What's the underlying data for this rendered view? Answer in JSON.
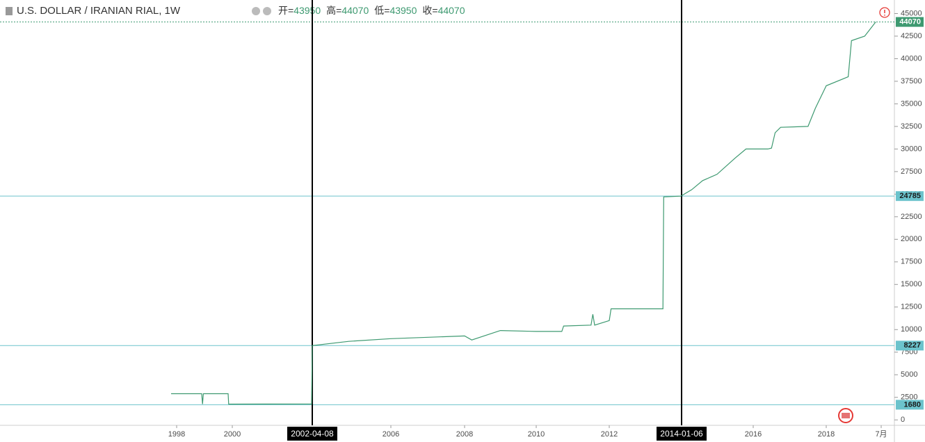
{
  "chart_data": {
    "type": "line",
    "title": "U.S. DOLLAR / IRANIAN RIAL, 1W",
    "ohlc": [
      {
        "label": "开=",
        "value": 43950
      },
      {
        "label": "高=",
        "value": 44070
      },
      {
        "label": "低=",
        "value": 43950
      },
      {
        "label": "收=",
        "value": 44070
      }
    ],
    "series": [
      {
        "color": "#3d9970",
        "x": [
          1997.8,
          1998.9,
          1998.93,
          1998.96,
          1999.85,
          1999.87,
          2002.25,
          2002.27,
          2004,
          2006,
          2008,
          2008.2,
          2009,
          2010,
          2010.7,
          2010.75,
          2011.5,
          2011.55,
          2011.6,
          2012.0,
          2012.05,
          2013.5,
          2013.52,
          2014.0,
          2014.3,
          2014.6,
          2015.0,
          2015.5,
          2015.8,
          2016.4,
          2016.5,
          2016.6,
          2016.75,
          2017.5,
          2017.7,
          2018.0,
          2018.2,
          2018.23,
          2018.35,
          2018.45
        ],
        "values": [
          2900,
          2900,
          1750,
          2900,
          2900,
          1750,
          1760,
          8227,
          8700,
          9000,
          9300,
          8850,
          9900,
          9800,
          9800,
          10400,
          10500,
          11700,
          10500,
          11000,
          12300,
          12300,
          24700,
          24785,
          25500,
          26500,
          27200,
          29000,
          30000,
          30000,
          30100,
          31800,
          32400,
          32500,
          34500,
          37000,
          38000,
          42000,
          42500,
          44070
        ]
      }
    ],
    "xlim": [
      1991.65,
      2018.86
    ],
    "xticks": [
      1998,
      2000,
      2006,
      2008,
      2010,
      2012,
      2016,
      2018,
      {
        "value": 2018.5,
        "label": "7月"
      }
    ],
    "vlines": [
      {
        "value": 2002.27,
        "label": "2002-04-08"
      },
      {
        "value": 2014.02,
        "label": "2014-01-06"
      }
    ],
    "ylim": [
      -600,
      46500
    ],
    "yticks": [
      0,
      2500,
      5000,
      7500,
      10000,
      12500,
      15000,
      17500,
      20000,
      22500,
      25000,
      27500,
      30000,
      32500,
      35000,
      37500,
      40000,
      42500,
      45000
    ],
    "price_lines": [
      {
        "value": 44070,
        "color": "#3d9970",
        "dashed": true
      },
      {
        "value": 24785,
        "color": "#6cc3cc",
        "dashed": false
      },
      {
        "value": 8227,
        "color": "#6cc3cc",
        "dashed": false
      },
      {
        "value": 1680,
        "color": "#6cc3cc",
        "dashed": false
      }
    ]
  }
}
